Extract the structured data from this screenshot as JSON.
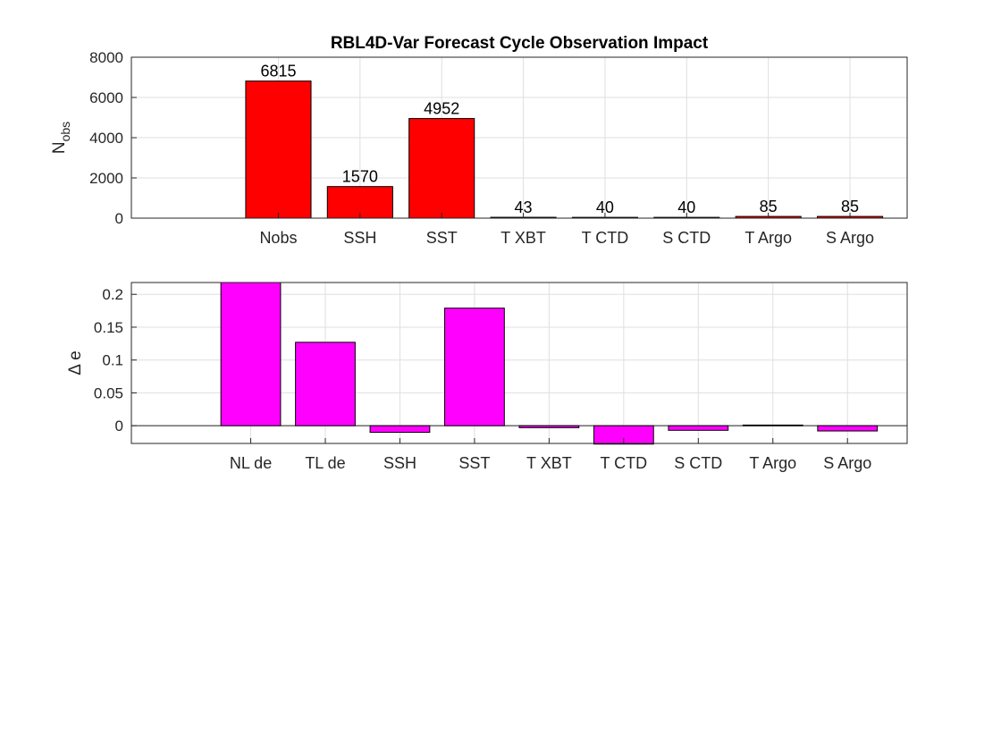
{
  "chart_data": [
    {
      "type": "bar",
      "title": "RBL4D-Var Forecast Cycle Observation Impact",
      "xlabel": "",
      "ylabel": "N",
      "ylabel_subscript": "obs",
      "categories": [
        "Nobs",
        "SSH",
        "SST",
        "T XBT",
        "T CTD",
        "S CTD",
        "T Argo",
        "S Argo"
      ],
      "values": [
        6815,
        1570,
        4952,
        43,
        40,
        40,
        85,
        85
      ],
      "data_labels": [
        "6815",
        "1570",
        "4952",
        "43",
        "40",
        "40",
        "85",
        "85"
      ],
      "ylim": [
        0,
        8000
      ],
      "yticks": [
        "0",
        "2000",
        "4000",
        "6000",
        "8000"
      ],
      "grid": true,
      "bar_color": "#ff0000"
    },
    {
      "type": "bar",
      "title": "",
      "xlabel": "",
      "ylabel": "Δ e",
      "categories": [
        "NL de",
        "TL de",
        "SSH",
        "SST",
        "T XBT",
        "T CTD",
        "S CTD",
        "T Argo",
        "S Argo"
      ],
      "values": [
        0.218,
        0.127,
        -0.01,
        0.179,
        -0.003,
        -0.028,
        -0.007,
        0.001,
        -0.008
      ],
      "ylim": [
        -0.027,
        0.218
      ],
      "yticks": [
        "0",
        "0.05",
        "0.1",
        "0.15",
        "0.2"
      ],
      "grid": true,
      "bar_color": "#ff00ff"
    }
  ]
}
